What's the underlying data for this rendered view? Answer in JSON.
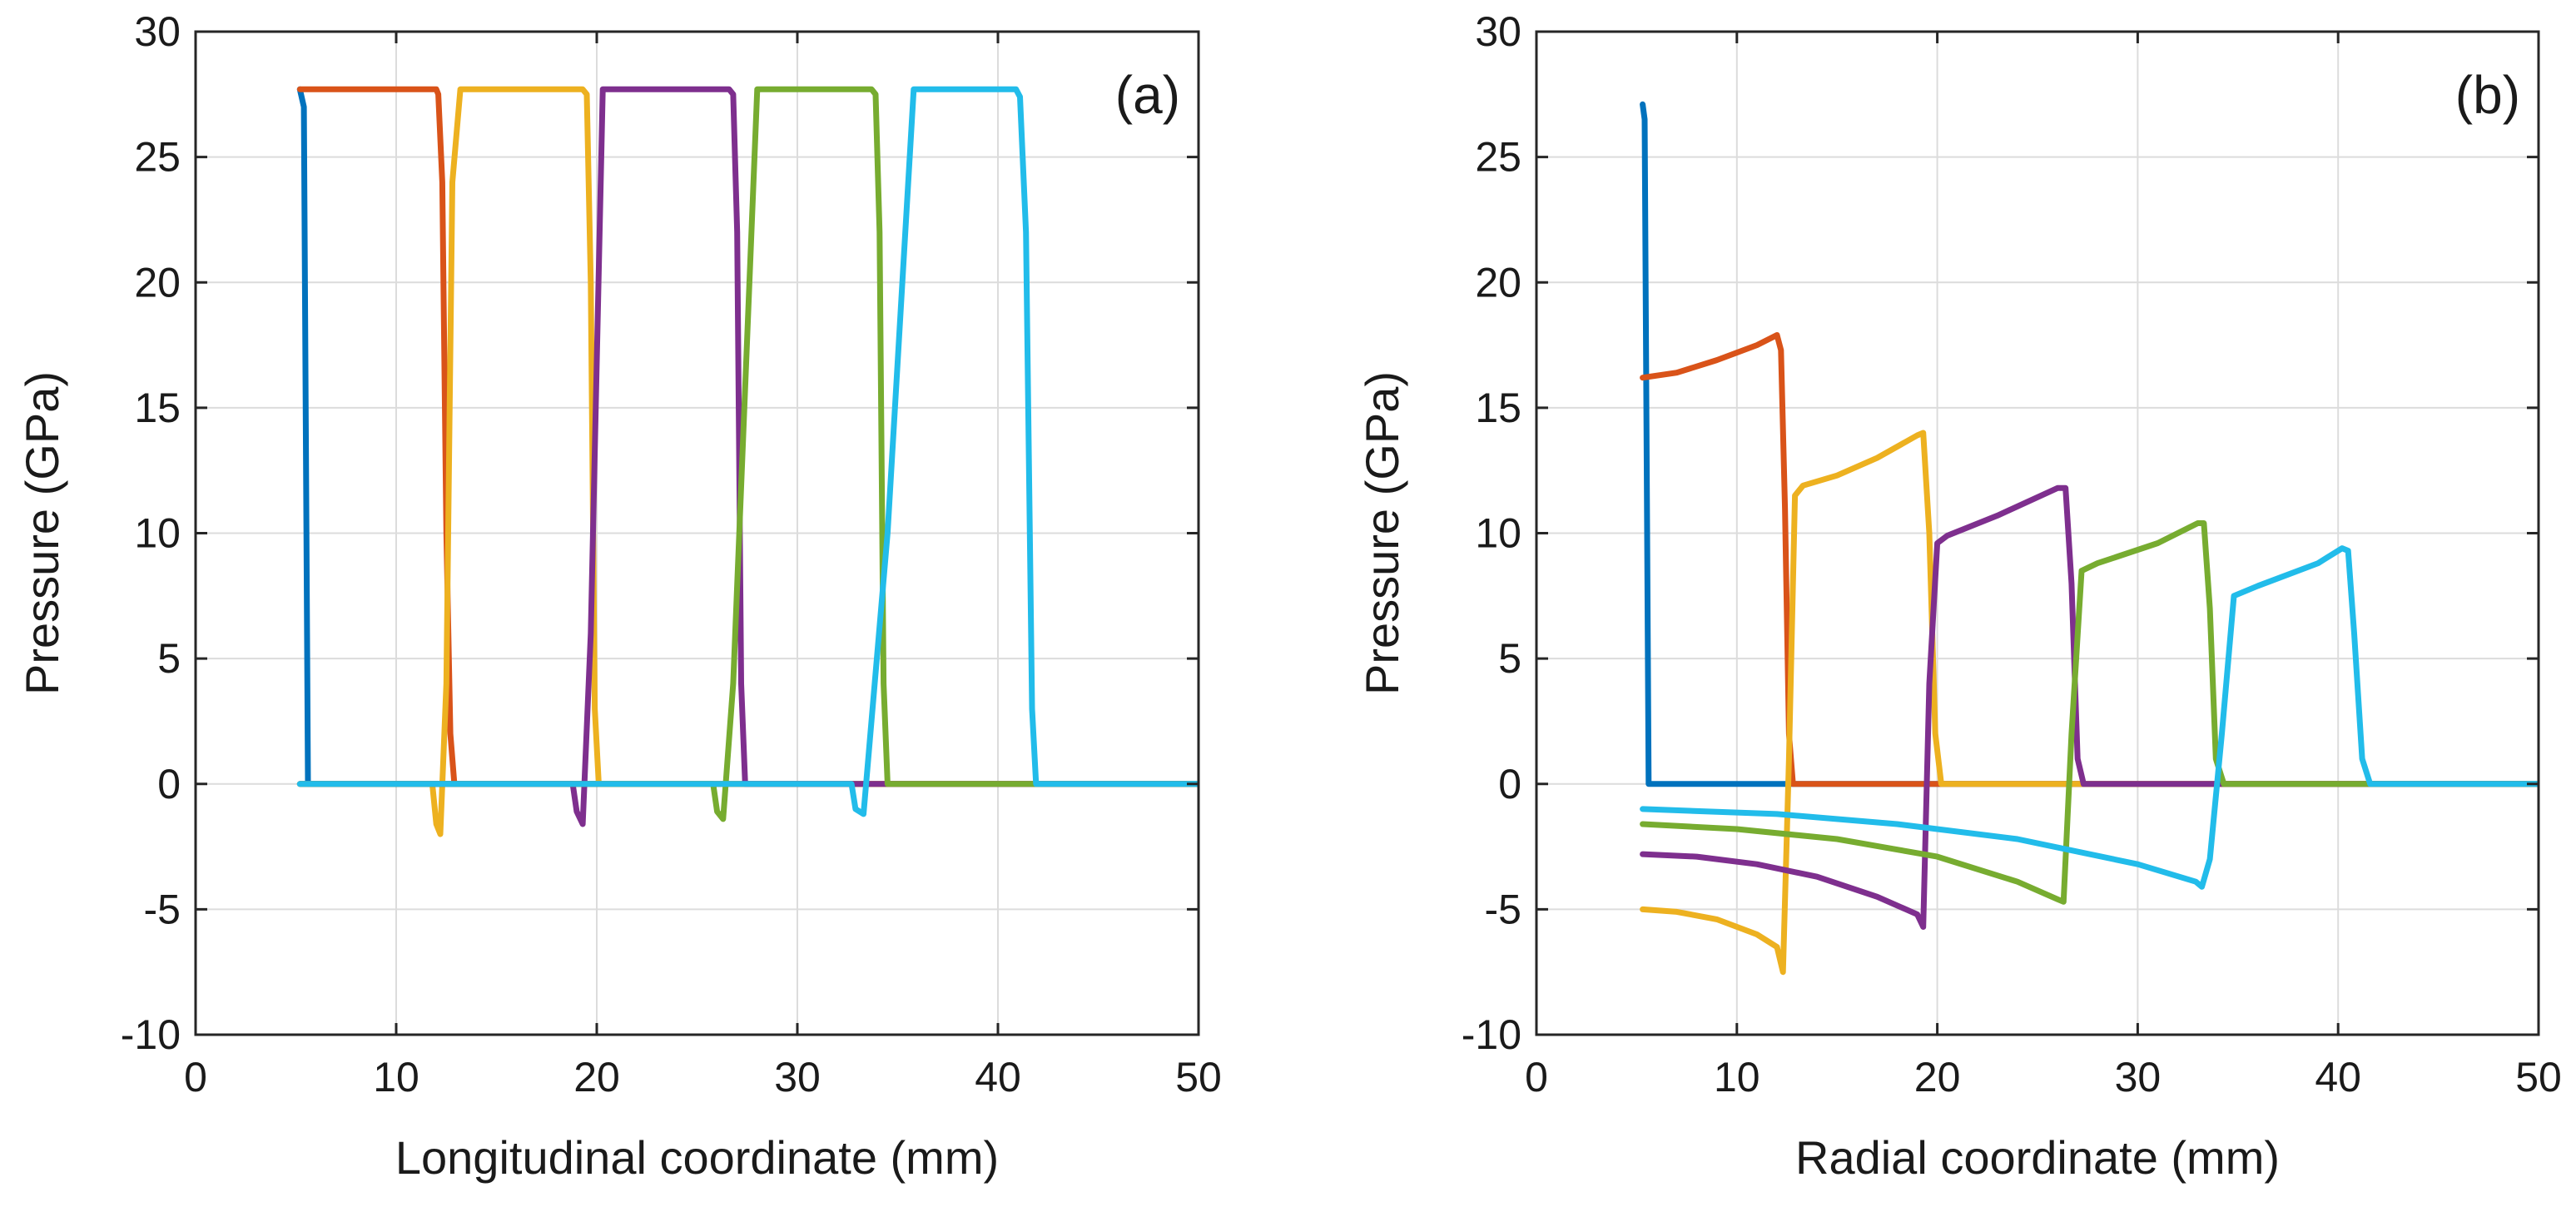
{
  "chart_data": [
    {
      "type": "line",
      "panel_label": "(a)",
      "xlabel": "Longitudinal coordinate (mm)",
      "ylabel": "Pressure (GPa)",
      "xlim": [
        0,
        50
      ],
      "ylim": [
        -10,
        30
      ],
      "xticks": [
        0,
        10,
        20,
        30,
        40,
        50
      ],
      "yticks": [
        -10,
        -5,
        0,
        5,
        10,
        15,
        20,
        25,
        30
      ],
      "grid": true,
      "series": [
        {
          "color": "#0072BD",
          "x": [
            5.2,
            5.4,
            5.6,
            50
          ],
          "y": [
            27.7,
            27.0,
            0,
            0
          ]
        },
        {
          "color": "#D95319",
          "x": [
            5.2,
            12.0,
            12.1,
            12.3,
            12.5,
            12.7,
            12.9,
            50
          ],
          "y": [
            27.7,
            27.7,
            27.5,
            24,
            10,
            2,
            0,
            0
          ]
        },
        {
          "color": "#EDB120",
          "x": [
            5.2,
            11.8,
            12.0,
            12.2,
            12.5,
            12.8,
            13.2,
            19.3,
            19.5,
            19.7,
            19.9,
            20.1,
            50
          ],
          "y": [
            0,
            0,
            -1.6,
            -2.0,
            4,
            24,
            27.7,
            27.7,
            27.5,
            20,
            3,
            0,
            0
          ]
        },
        {
          "color": "#7E2F8E",
          "x": [
            5.2,
            18.8,
            19.0,
            19.3,
            19.7,
            20.3,
            26.6,
            26.8,
            27.0,
            27.2,
            27.4,
            50
          ],
          "y": [
            0,
            0,
            -1.1,
            -1.6,
            6,
            27.7,
            27.7,
            27.5,
            22,
            4,
            0,
            0
          ]
        },
        {
          "color": "#77AC30",
          "x": [
            5.2,
            25.8,
            26.0,
            26.3,
            26.8,
            28.0,
            33.7,
            33.9,
            34.1,
            34.3,
            34.5,
            50
          ],
          "y": [
            0,
            0,
            -1.1,
            -1.4,
            4,
            27.7,
            27.7,
            27.5,
            22,
            4,
            0,
            0
          ]
        },
        {
          "color": "#22BCEA",
          "x": [
            5.2,
            32.7,
            32.9,
            33.3,
            34.5,
            35.8,
            40.9,
            41.1,
            41.4,
            41.7,
            41.9,
            50
          ],
          "y": [
            0,
            0,
            -1.0,
            -1.2,
            10,
            27.7,
            27.7,
            27.4,
            22,
            3,
            0,
            0
          ]
        }
      ]
    },
    {
      "type": "line",
      "panel_label": "(b)",
      "xlabel": "Radial coordinate (mm)",
      "ylabel": "Pressure (GPa)",
      "xlim": [
        0,
        50
      ],
      "ylim": [
        -10,
        30
      ],
      "xticks": [
        0,
        10,
        20,
        30,
        40,
        50
      ],
      "yticks": [
        -10,
        -5,
        0,
        5,
        10,
        15,
        20,
        25,
        30
      ],
      "grid": true,
      "series": [
        {
          "color": "#0072BD",
          "x": [
            5.3,
            5.4,
            5.6,
            50
          ],
          "y": [
            27.1,
            26.5,
            0,
            0
          ]
        },
        {
          "color": "#D95319",
          "x": [
            5.3,
            7,
            9,
            11,
            12.0,
            12.2,
            12.4,
            12.6,
            12.8,
            50
          ],
          "y": [
            16.2,
            16.4,
            16.9,
            17.5,
            17.9,
            17.3,
            11,
            2,
            0,
            0
          ]
        },
        {
          "color": "#EDB120",
          "x": [
            5.3,
            7,
            9,
            11,
            12.0,
            12.3,
            12.6,
            12.9,
            13.3,
            15,
            17,
            19.0,
            19.3,
            19.6,
            19.9,
            20.2,
            50
          ],
          "y": [
            -5.0,
            -5.1,
            -5.4,
            -6.0,
            -6.5,
            -7.5,
            1,
            11.5,
            11.9,
            12.3,
            13.0,
            13.9,
            14.0,
            10,
            2,
            0,
            0
          ]
        },
        {
          "color": "#7E2F8E",
          "x": [
            5.3,
            8,
            11,
            14,
            17,
            19.0,
            19.3,
            19.6,
            20.0,
            20.5,
            23,
            26.0,
            26.4,
            26.7,
            27.0,
            27.3,
            50
          ],
          "y": [
            -2.8,
            -2.9,
            -3.2,
            -3.7,
            -4.5,
            -5.2,
            -5.7,
            4,
            9.6,
            9.9,
            10.7,
            11.8,
            11.8,
            8,
            1,
            0,
            0
          ]
        },
        {
          "color": "#77AC30",
          "x": [
            5.3,
            10,
            15,
            20,
            24,
            26.0,
            26.3,
            26.7,
            27.2,
            28,
            31,
            33.0,
            33.3,
            33.6,
            33.9,
            34.3,
            50
          ],
          "y": [
            -1.6,
            -1.8,
            -2.2,
            -2.9,
            -3.9,
            -4.6,
            -4.7,
            2,
            8.5,
            8.8,
            9.6,
            10.4,
            10.4,
            7,
            1,
            0,
            0
          ]
        },
        {
          "color": "#22BCEA",
          "x": [
            5.3,
            12,
            18,
            24,
            30,
            32.9,
            33.2,
            33.6,
            34.2,
            34.8,
            36,
            39,
            40.2,
            40.5,
            40.8,
            41.2,
            41.6,
            50
          ],
          "y": [
            -1.0,
            -1.2,
            -1.6,
            -2.2,
            -3.2,
            -3.9,
            -4.1,
            -3.0,
            2,
            7.5,
            7.9,
            8.8,
            9.4,
            9.3,
            6,
            1,
            0,
            0
          ]
        }
      ]
    }
  ]
}
